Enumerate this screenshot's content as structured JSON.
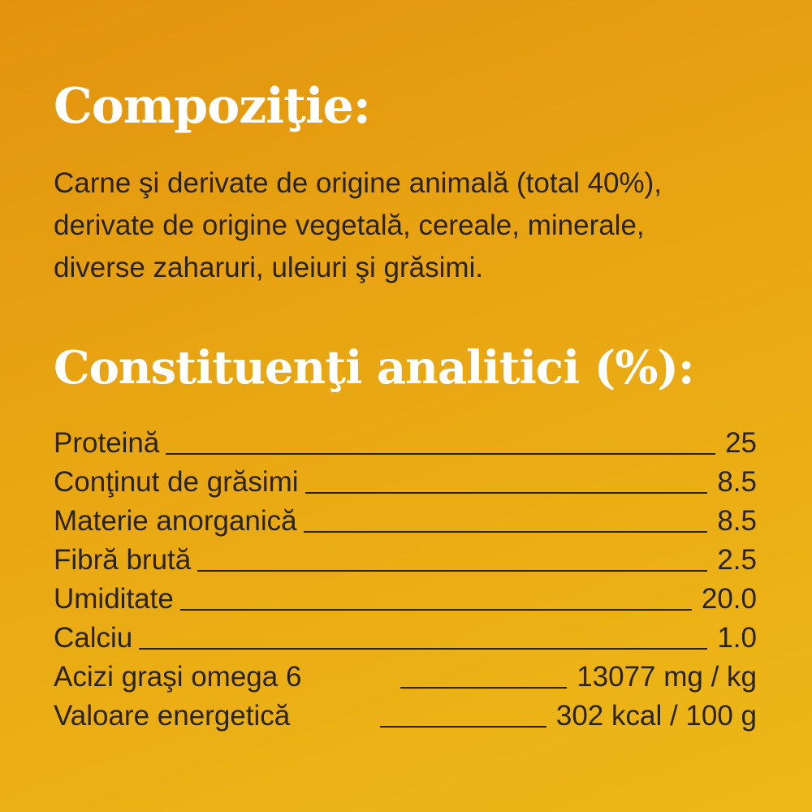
{
  "composition": {
    "title": "Compoziţie:",
    "lines": [
      "Carne şi derivate de origine animală (total 40%),",
      "derivate de origine vegetală, cereale, minerale,",
      "diverse zaharuri, uleiuri şi grăsimi."
    ]
  },
  "analytic": {
    "title": "Constituenţi analitici (%):",
    "rows": [
      {
        "label": "Proteină",
        "value": "25"
      },
      {
        "label": "Conţinut de grăsimi",
        "value": "8.5"
      },
      {
        "label": "Materie anorganică",
        "value": "8.5"
      },
      {
        "label": "Fibră brută",
        "value": "2.5"
      },
      {
        "label": "Umiditate",
        "value": "20.0"
      },
      {
        "label": "Calciu",
        "value": "1.0"
      },
      {
        "label": "Acizi graşi omega 6",
        "value": "13077 mg / kg"
      },
      {
        "label": "Valoare energetică",
        "value": "302 kcal / 100 g"
      }
    ]
  },
  "colors": {
    "background_top": "#e2930e",
    "background_bottom": "#edb817",
    "heading": "#ffffff",
    "text": "#2b2416"
  }
}
